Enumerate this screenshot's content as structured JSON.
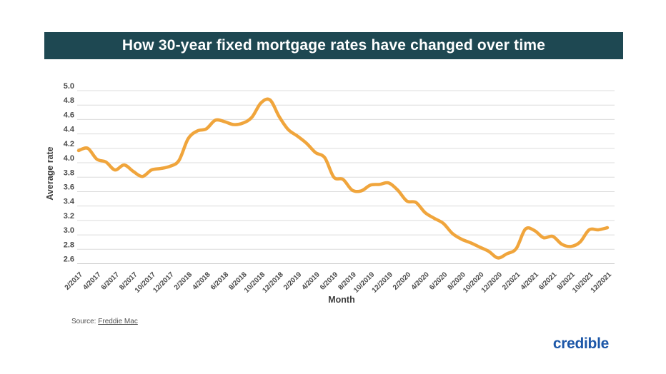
{
  "banner": {
    "title": "How 30-year fixed mortgage rates have changed over time",
    "background": "#1E4852"
  },
  "footer": {
    "source_prefix": "Source:",
    "source_link": "Freddie Mac",
    "brand": "credible",
    "brand_color": "#1C57A8"
  },
  "chart_data": {
    "type": "line",
    "title": "How 30-year fixed mortgage rates have changed over time",
    "xlabel": "Month",
    "ylabel": "Average rate",
    "ylim": [
      2.6,
      5.0
    ],
    "ytick_step": 0.2,
    "yticks": [
      5.0,
      4.8,
      4.6,
      4.4,
      4.2,
      4.0,
      3.8,
      3.6,
      3.4,
      3.2,
      3.0,
      2.8,
      2.6
    ],
    "grid": true,
    "legend": "none",
    "line_color": "#F0A53C",
    "grid_color": "#DCDCDC",
    "x_tick_rotation_deg": 45,
    "x_tick_labels": [
      "2/2017",
      "4/2017",
      "6/2017",
      "8/2017",
      "10/2017",
      "12/2017",
      "2/2018",
      "4/2018",
      "6/2018",
      "8/2018",
      "10/2018",
      "12/2018",
      "2/2019",
      "4/2019",
      "6/2019",
      "8/2019",
      "10/2019",
      "12/2019",
      "2/2020",
      "4/2020",
      "6/2020",
      "8/2020",
      "10/2020",
      "12/2020",
      "2/2021",
      "4/2021",
      "6/2021",
      "8/2021",
      "10/2021",
      "12/2021"
    ],
    "series": [
      {
        "name": "30-year fixed mortgage rate",
        "x": [
          "2/2017",
          "3/2017",
          "4/2017",
          "5/2017",
          "6/2017",
          "7/2017",
          "8/2017",
          "9/2017",
          "10/2017",
          "11/2017",
          "12/2017",
          "1/2018",
          "2/2018",
          "3/2018",
          "4/2018",
          "5/2018",
          "6/2018",
          "7/2018",
          "8/2018",
          "9/2018",
          "10/2018",
          "11/2018",
          "12/2018",
          "1/2019",
          "2/2019",
          "3/2019",
          "4/2019",
          "5/2019",
          "6/2019",
          "7/2019",
          "8/2019",
          "9/2019",
          "10/2019",
          "11/2019",
          "12/2019",
          "1/2020",
          "2/2020",
          "3/2020",
          "4/2020",
          "5/2020",
          "6/2020",
          "7/2020",
          "8/2020",
          "9/2020",
          "10/2020",
          "11/2020",
          "12/2020",
          "1/2021",
          "2/2021",
          "3/2021",
          "4/2021",
          "5/2021",
          "6/2021",
          "7/2021",
          "8/2021",
          "9/2021",
          "10/2021",
          "11/2021",
          "12/2021"
        ],
        "values": [
          4.17,
          4.2,
          4.05,
          4.01,
          3.9,
          3.97,
          3.88,
          3.81,
          3.9,
          3.92,
          3.95,
          4.03,
          4.33,
          4.44,
          4.47,
          4.59,
          4.57,
          4.53,
          4.55,
          4.63,
          4.83,
          4.87,
          4.64,
          4.46,
          4.37,
          4.27,
          4.14,
          4.07,
          3.8,
          3.77,
          3.62,
          3.61,
          3.69,
          3.7,
          3.72,
          3.62,
          3.47,
          3.45,
          3.31,
          3.23,
          3.16,
          3.02,
          2.94,
          2.89,
          2.83,
          2.77,
          2.68,
          2.74,
          2.81,
          3.08,
          3.06,
          2.96,
          2.98,
          2.87,
          2.84,
          2.9,
          3.07,
          3.07,
          3.1
        ]
      }
    ]
  }
}
